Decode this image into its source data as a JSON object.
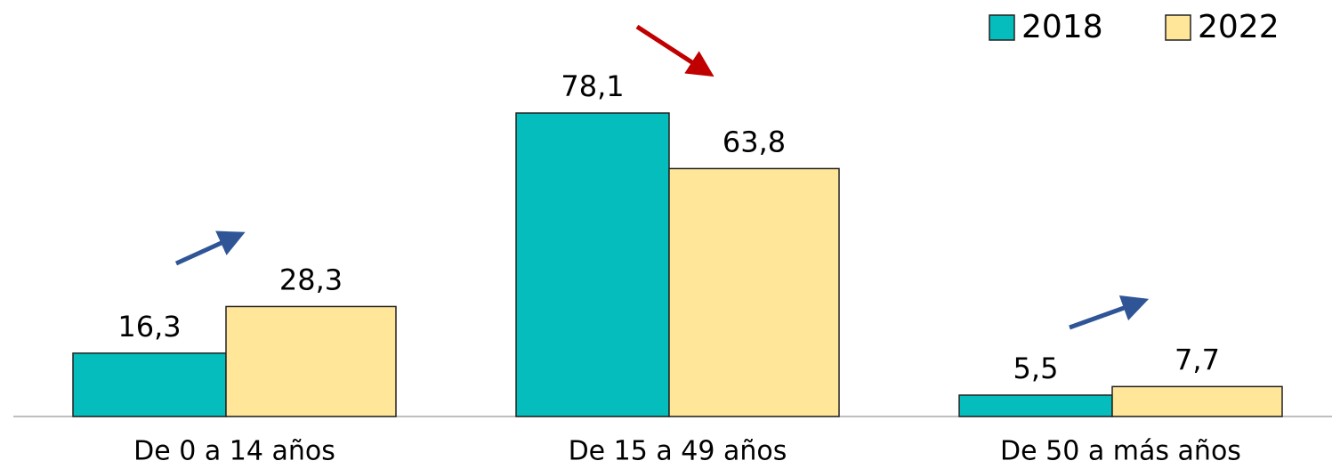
{
  "chart_data": {
    "type": "bar",
    "categories": [
      "De 0 a 14 años",
      "De 15 a 49 años",
      "De 50 a más años"
    ],
    "series": [
      {
        "name": "2018",
        "color": "#06bdbd",
        "values": [
          16.3,
          78.1,
          5.5
        ],
        "value_labels": [
          "16,3",
          "78,1",
          "5,5"
        ]
      },
      {
        "name": "2022",
        "color": "#ffe699",
        "values": [
          28.3,
          63.8,
          7.7
        ],
        "value_labels": [
          "28,3",
          "63,8",
          "7,7"
        ]
      }
    ],
    "legend": "top-right"
  }
}
